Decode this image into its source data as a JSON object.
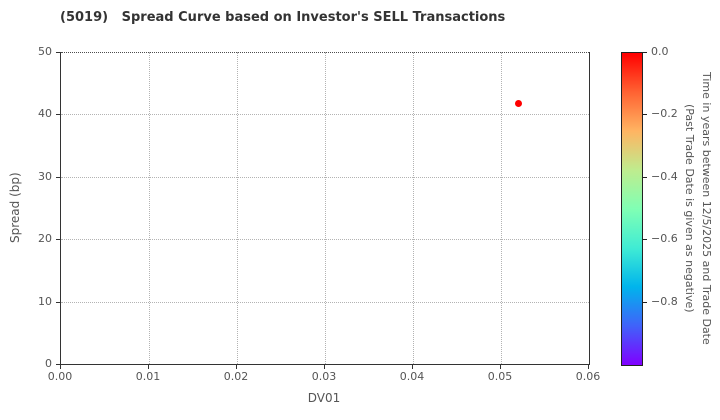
{
  "title": "(5019)   Spread Curve based on Investor's SELL Transactions",
  "chart_data": {
    "type": "scatter",
    "title": "(5019)   Spread Curve based on Investor's SELL Transactions",
    "xlabel": "DV01",
    "ylabel": "Spread (bp)",
    "xlim": [
      0.0,
      0.06
    ],
    "ylim": [
      0,
      50
    ],
    "x_ticks": [
      "0.00",
      "0.01",
      "0.02",
      "0.03",
      "0.04",
      "0.05",
      "0.06"
    ],
    "y_ticks": [
      "0",
      "10",
      "20",
      "30",
      "40",
      "50"
    ],
    "grid": true,
    "grid_style": "dotted",
    "legend_position": "none",
    "series": [
      {
        "points": [
          {
            "x": 0.052,
            "y": 41.7,
            "time_years": 0.0,
            "color": "#ff0000"
          }
        ]
      }
    ],
    "colorbar": {
      "label_line1": "Time in years between 12/5/2025 and Trade Date",
      "label_line2": "(Past Trade Date is given as negative)",
      "tick_labels": [
        "0.0",
        "−0.2",
        "−0.4",
        "−0.6",
        "−0.8"
      ],
      "range_top": 0.0,
      "range_bottom": -1.0,
      "colormap": "rainbow (red at 0.0 to violet at −1.0)",
      "color_top": "#ff0000",
      "color_bottom": "#8000ff"
    }
  },
  "colors": {
    "background": "#ffffff",
    "point": "#ff0000",
    "spine": "#333333",
    "grid": "#b3b3b3",
    "tick_text": "#555555",
    "title_text": "#333333"
  }
}
